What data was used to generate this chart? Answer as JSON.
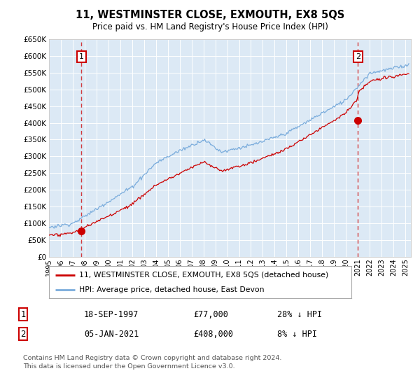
{
  "title": "11, WESTMINSTER CLOSE, EXMOUTH, EX8 5QS",
  "subtitle": "Price paid vs. HM Land Registry's House Price Index (HPI)",
  "legend_line1": "11, WESTMINSTER CLOSE, EXMOUTH, EX8 5QS (detached house)",
  "legend_line2": "HPI: Average price, detached house, East Devon",
  "annotation1_date": "18-SEP-1997",
  "annotation1_price": "£77,000",
  "annotation1_hpi": "28% ↓ HPI",
  "annotation2_date": "05-JAN-2021",
  "annotation2_price": "£408,000",
  "annotation2_hpi": "8% ↓ HPI",
  "sale1_year": 1997.72,
  "sale1_price": 77000,
  "sale2_year": 2021.01,
  "sale2_price": 408000,
  "footer": "Contains HM Land Registry data © Crown copyright and database right 2024.\nThis data is licensed under the Open Government Licence v3.0.",
  "red_color": "#cc0000",
  "blue_color": "#7aacdc",
  "plot_bg": "#dce9f5",
  "grid_color": "#ffffff",
  "ylim": [
    0,
    650000
  ],
  "xlim_start": 1995.0,
  "xlim_end": 2025.5
}
